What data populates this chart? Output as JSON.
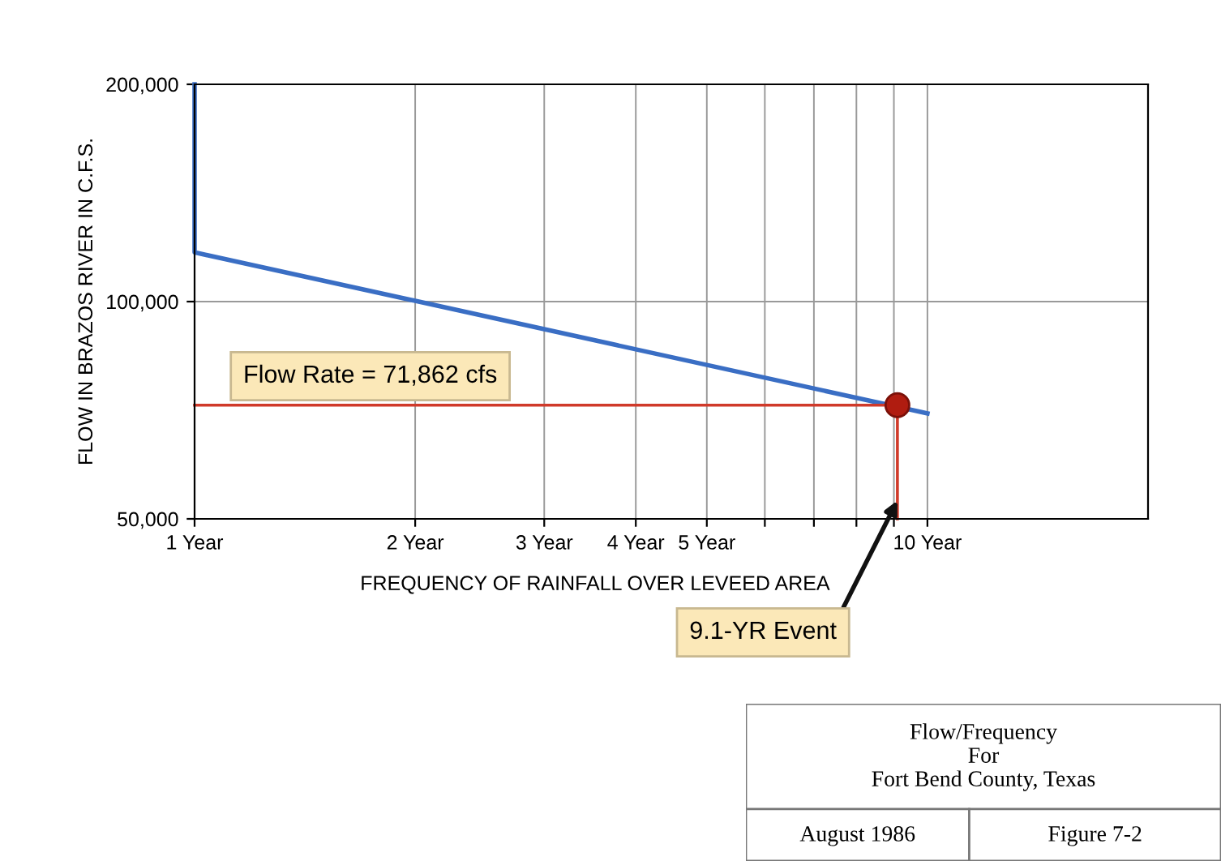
{
  "chart_data": {
    "type": "line",
    "log": "xy",
    "xlabel": "FREQUENCY OF RAINFALL OVER LEVEED AREA",
    "ylabel": "FLOW IN BRAZOS RIVER IN C.F.S.",
    "xlim": [
      1,
      20
    ],
    "ylim": [
      50000,
      200000
    ],
    "xticks": [
      {
        "value": 1,
        "label": "1 Year"
      },
      {
        "value": 2,
        "label": "2 Year"
      },
      {
        "value": 3,
        "label": "3 Year"
      },
      {
        "value": 4,
        "label": "4 Year"
      },
      {
        "value": 5,
        "label": "5 Year"
      },
      {
        "value": 6,
        "label": null
      },
      {
        "value": 7,
        "label": null
      },
      {
        "value": 8,
        "label": null
      },
      {
        "value": 9,
        "label": null
      },
      {
        "value": 10,
        "label": "10 Year"
      }
    ],
    "yticks": [
      {
        "value": 50000,
        "label": "50,000"
      },
      {
        "value": 100000,
        "label": "100,000"
      },
      {
        "value": 200000,
        "label": "200,000"
      }
    ],
    "grid": true,
    "legend": false,
    "series": [
      {
        "type": "line",
        "color": "#3a6ec4",
        "x": [
          1,
          1,
          10
        ],
        "values": [
          200000,
          117000,
          70000
        ]
      },
      {
        "type": "line",
        "color": "#d03a2a",
        "x": [
          1,
          9.1,
          9.1
        ],
        "values": [
          71862,
          71862,
          50000
        ]
      },
      {
        "type": "scatter",
        "color": "#b01c10",
        "marker": "circle",
        "x": [
          9.1
        ],
        "values": [
          71862
        ]
      }
    ],
    "annotations": [
      "Flow Rate = 71,862 cfs",
      {
        "text": "9.1-YR Event",
        "x": 9.1,
        "y": 53000
      },
      "Flow/Frequency\nFor\nFort Bend County, Texas",
      "August 1986",
      "Figure 7-2"
    ]
  }
}
